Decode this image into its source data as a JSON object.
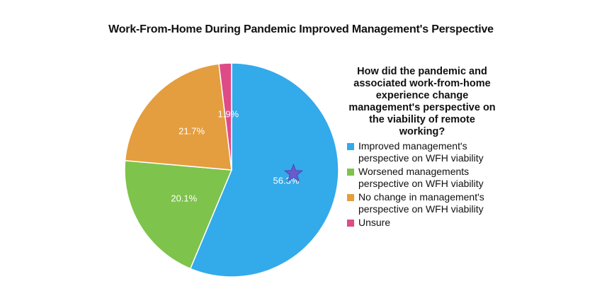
{
  "chart_data": {
    "type": "pie",
    "title": "Work-From-Home During Pandemic Improved Management's Perspective",
    "legend_title": "How did the pandemic and associated work-from-home experience change management's perspective on the viability of remote working?",
    "legend_position": "right",
    "start_angle_deg": 0,
    "direction": "clockwise",
    "slices": [
      {
        "label": "Improved management's perspective on WFH viability",
        "value": 56.3,
        "value_label": "56.3%",
        "color": "#33aaea"
      },
      {
        "label": "Worsened managements perspective on WFH viability",
        "value": 20.1,
        "value_label": "20.1%",
        "color": "#7ec34c"
      },
      {
        "label": "No change in management's perspective on WFH viability",
        "value": 21.7,
        "value_label": "21.7%",
        "color": "#e49e3f"
      },
      {
        "label": "Unsure",
        "value": 1.9,
        "value_label": "1.9%",
        "color": "#de4b87"
      }
    ],
    "marker": {
      "shape": "star",
      "color": "#6a5acd",
      "slice_index": 0
    }
  }
}
